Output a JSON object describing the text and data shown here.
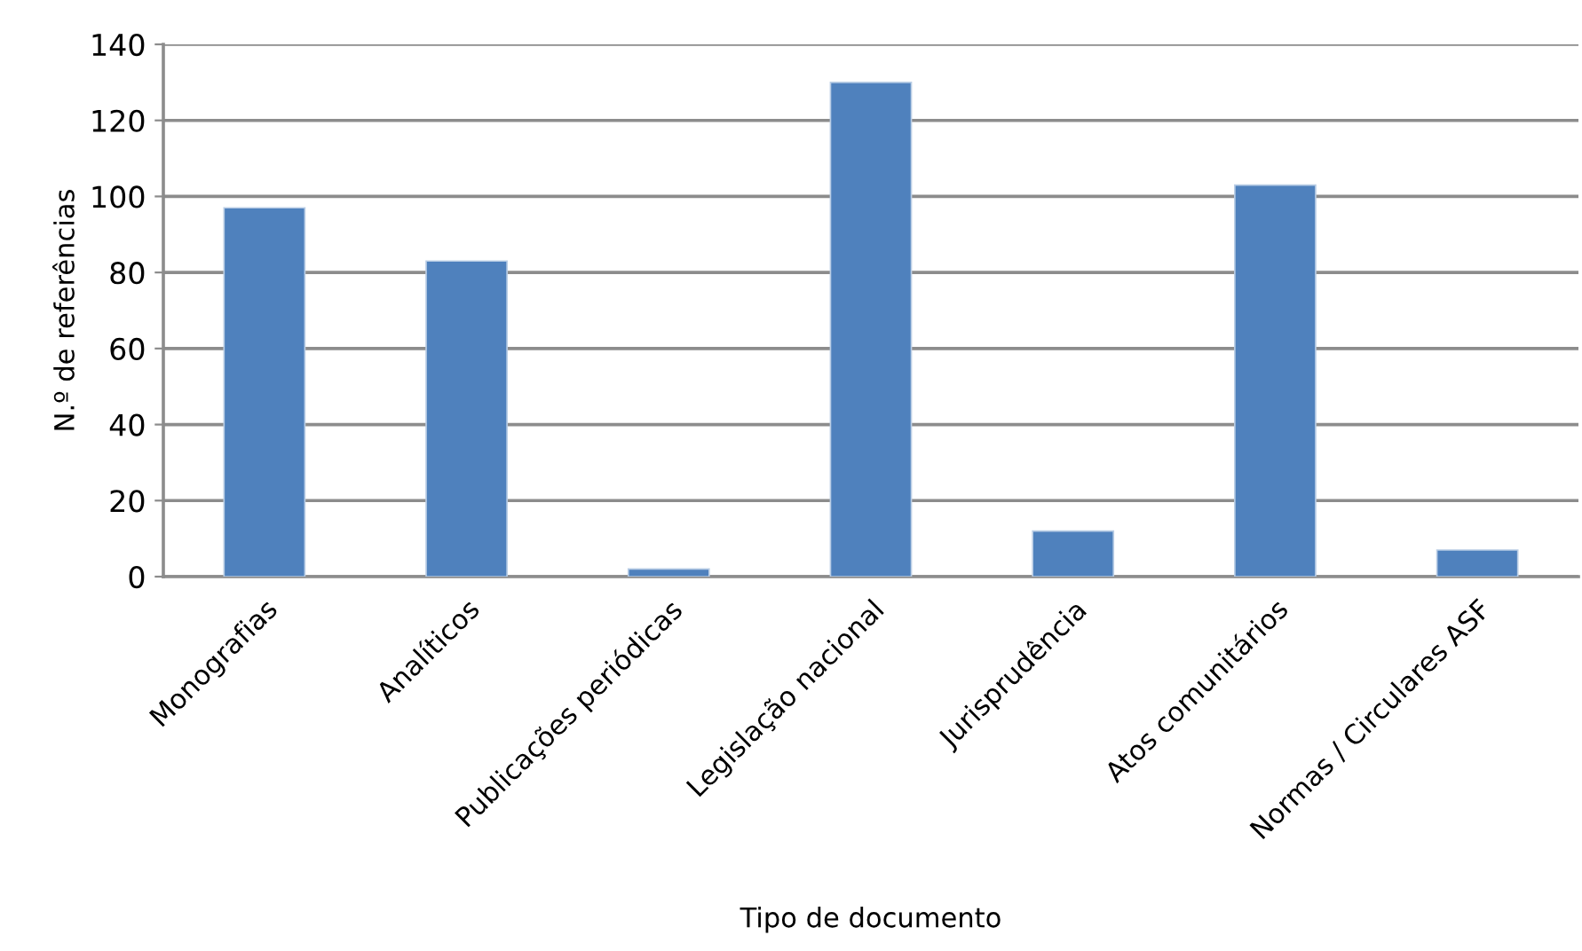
{
  "chart_data": {
    "type": "bar",
    "categories": [
      "Monografias",
      "Analíticos",
      "Publicações periódicas",
      "Legislação nacional",
      "Jurisprudência",
      "Atos comunitários",
      "Normas / Circulares ASF"
    ],
    "values": [
      97,
      83,
      2,
      130,
      12,
      103,
      7
    ],
    "color": "#4f81bd",
    "xlabel": "Tipo de documento",
    "ylabel": "N.º de referências",
    "ylim": [
      0,
      140
    ],
    "yticks": [
      0,
      20,
      40,
      60,
      80,
      100,
      120,
      140
    ],
    "grid": "y",
    "legend": false
  }
}
